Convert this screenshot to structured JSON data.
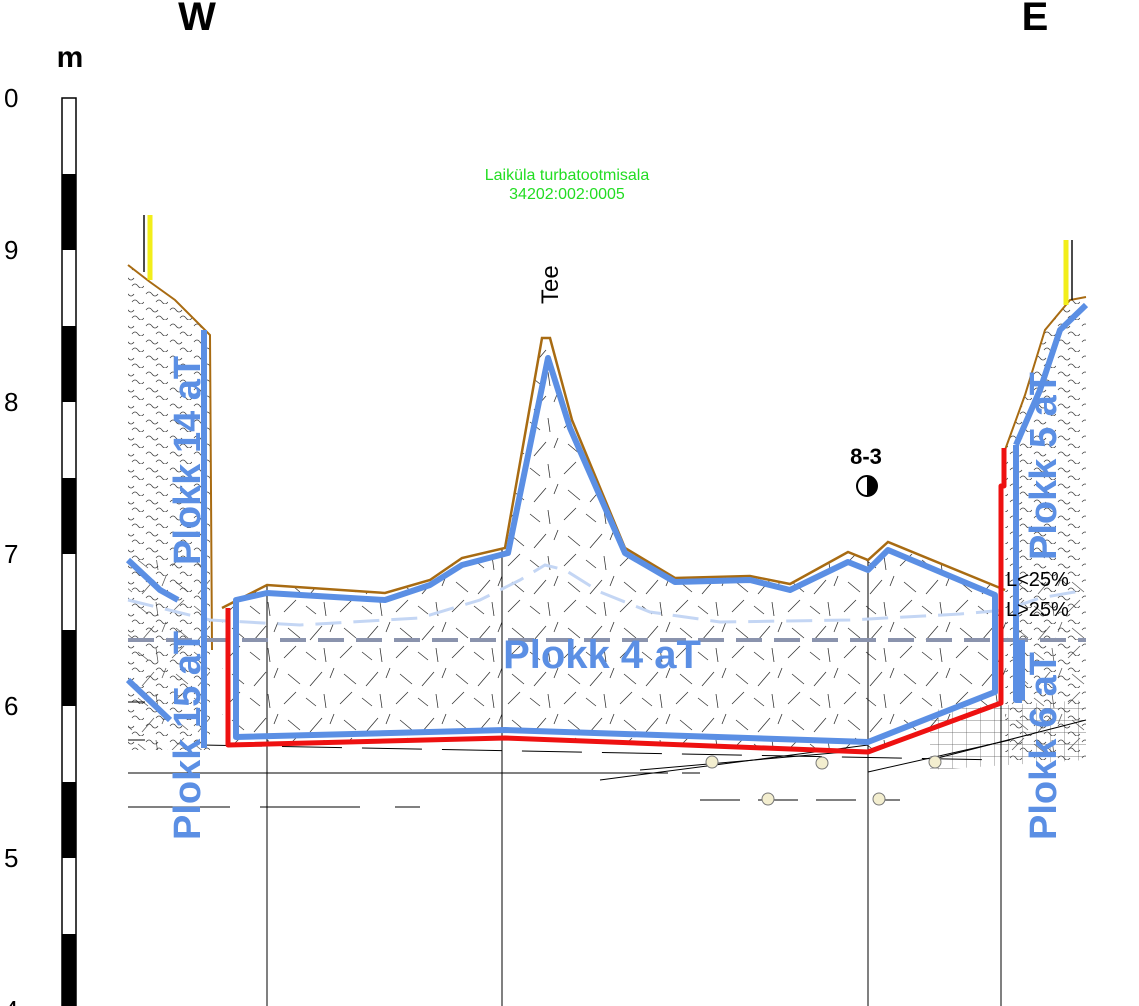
{
  "orientation": {
    "west": "W",
    "east": "E"
  },
  "scale": {
    "unit": "m",
    "ticks": [
      "0",
      "9",
      "8",
      "7",
      "6",
      "5",
      "4"
    ]
  },
  "parcel": {
    "name": "Laiküla turbatootmisala",
    "code": "34202:002:0005"
  },
  "labels": {
    "road": "Tee",
    "borehole": "8-3",
    "peat_low": "L<25%",
    "peat_high": "L>25%"
  },
  "blocks": {
    "b4": "Plokk 4 aT",
    "b5": "Plokk 5 aT",
    "b6": "Plokk 6 aT",
    "b14": "Plokk 14 aT",
    "b15": "Plokk 15 aT"
  },
  "colors": {
    "block_outline": "#5b8fe4",
    "bottom_line": "#ee1111",
    "ground_line": "#a86b12",
    "peat_boundary": "#c4d6f4",
    "water_level": "#8a93ad",
    "marker": "#f2ee1a",
    "parcel_text": "#22dd22"
  },
  "icons": {
    "borehole": "half-filled-circle-icon"
  }
}
